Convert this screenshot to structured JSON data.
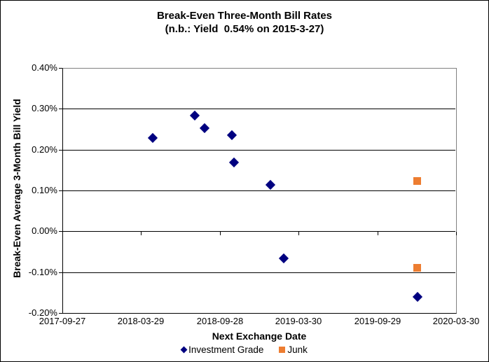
{
  "chart_data": {
    "type": "scatter",
    "title": "Break-Even Three-Month Bill Rates",
    "subtitle": "(n.b.: Yield  0.54% on 2015-3-27)",
    "xlabel": "Next Exchange Date",
    "ylabel": "Break-Even Average 3-Month Bill Yield",
    "grid": "horizontal",
    "legend_position": "bottom",
    "x_axis": {
      "min": "2017-09-27",
      "max": "2020-03-30",
      "ticks": [
        "2017-09-27",
        "2018-03-29",
        "2018-09-28",
        "2019-03-30",
        "2019-09-29",
        "2020-03-30"
      ]
    },
    "y_axis": {
      "min": -0.2,
      "max": 0.4,
      "unit": "%",
      "ticks": [
        {
          "value": 0.4,
          "label": "0.40%"
        },
        {
          "value": 0.3,
          "label": "0.30%"
        },
        {
          "value": 0.2,
          "label": "0.20%"
        },
        {
          "value": 0.1,
          "label": "0.10%"
        },
        {
          "value": 0.0,
          "label": "0.00%"
        },
        {
          "value": -0.1,
          "label": "-0.10%"
        },
        {
          "value": -0.2,
          "label": "-0.20%"
        }
      ]
    },
    "series": [
      {
        "name": "Investment Grade",
        "marker": "diamond",
        "color": "#000080",
        "points": [
          {
            "x": "2018-04-25",
            "y": 0.228
          },
          {
            "x": "2018-07-31",
            "y": 0.283
          },
          {
            "x": "2018-08-23",
            "y": 0.252
          },
          {
            "x": "2018-10-26",
            "y": 0.236
          },
          {
            "x": "2018-10-31",
            "y": 0.168
          },
          {
            "x": "2019-01-24",
            "y": 0.114
          },
          {
            "x": "2019-02-24",
            "y": -0.067
          },
          {
            "x": "2019-12-31",
            "y": -0.16
          }
        ]
      },
      {
        "name": "Junk",
        "marker": "square",
        "color": "#ED7D31",
        "points": [
          {
            "x": "2019-12-31",
            "y": 0.123
          },
          {
            "x": "2019-12-31",
            "y": -0.089
          }
        ]
      }
    ],
    "colors": {
      "axis": "#000000",
      "gridline": "#000000",
      "plot_border": "#808080",
      "background": "#FFFFFF",
      "text": "#000000"
    }
  }
}
